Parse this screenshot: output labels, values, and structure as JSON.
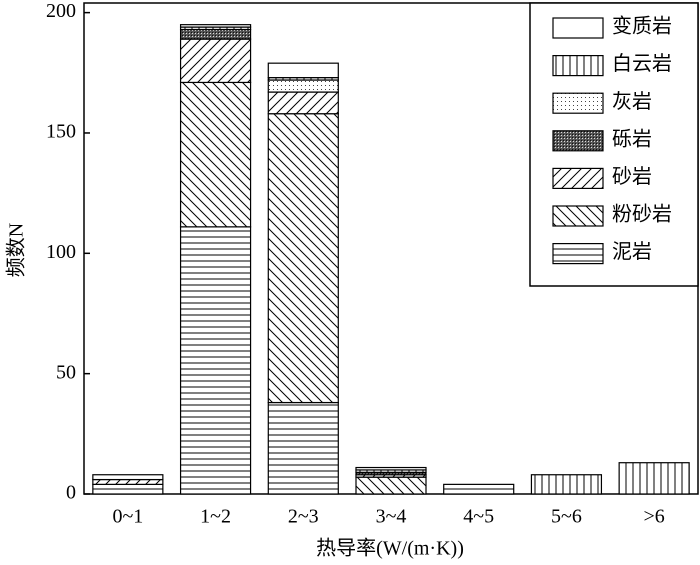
{
  "chart_data": {
    "type": "bar",
    "stacked": true,
    "x_label": "热导率(W/(m·K))",
    "y_label": "频数N",
    "categories": [
      "0~1",
      "1~2",
      "2~3",
      "3~4",
      "4~5",
      "5~6",
      ">6"
    ],
    "series": [
      {
        "name": "泥岩",
        "values": [
          4,
          111,
          38,
          0,
          4,
          0,
          0
        ]
      },
      {
        "name": "粉砂岩",
        "values": [
          0,
          60,
          120,
          7,
          0,
          0,
          0
        ]
      },
      {
        "name": "砂岩",
        "values": [
          2,
          18,
          9,
          1,
          0,
          0,
          0
        ]
      },
      {
        "name": "砾岩",
        "values": [
          0,
          4,
          0,
          1,
          0,
          0,
          0
        ]
      },
      {
        "name": "灰岩",
        "values": [
          0,
          0,
          5,
          0,
          0,
          0,
          0
        ]
      },
      {
        "name": "白云岩",
        "values": [
          0,
          1,
          1,
          1,
          0,
          8,
          13
        ]
      },
      {
        "name": "变质岩",
        "values": [
          2,
          1,
          6,
          1,
          0,
          0,
          0
        ]
      }
    ],
    "ylim": [
      0,
      204
    ],
    "yticks": [
      0,
      50,
      100,
      150,
      200
    ],
    "legend": "upper right"
  }
}
